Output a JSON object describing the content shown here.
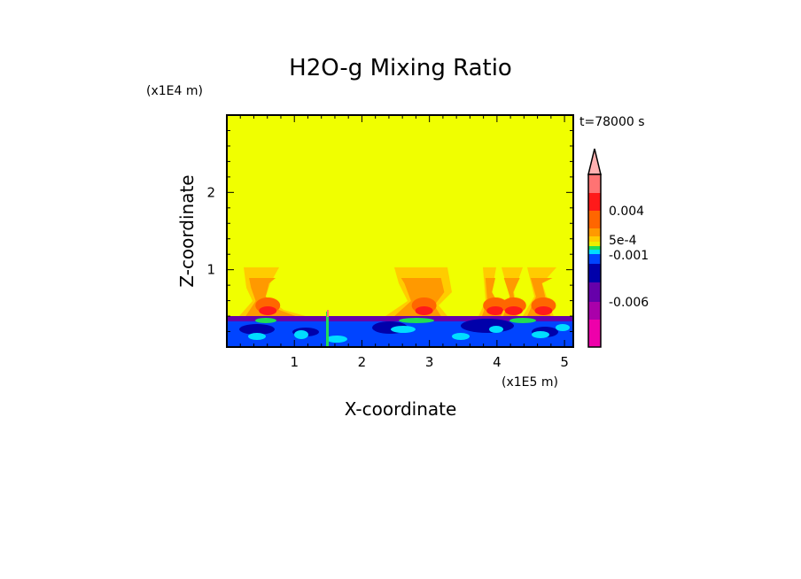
{
  "chart_data": {
    "type": "heatmap",
    "title": "H2O-g Mixing Ratio",
    "xlabel": "X-coordinate",
    "ylabel": "Z-coordinate",
    "x_unit": "(x1E5 m)",
    "y_unit": "(x1E4 m)",
    "annotation": "t=78000 s",
    "xlim": [
      0,
      5.13
    ],
    "ylim": [
      0,
      3.0
    ],
    "xticks": [
      1,
      2,
      3,
      4,
      5
    ],
    "xtick_labels": [
      "1",
      "2",
      "3",
      "4",
      "5"
    ],
    "yticks": [
      1,
      2
    ],
    "ytick_labels": [
      "1",
      "2"
    ],
    "colorbar": {
      "colors": [
        "#ffb0b0",
        "#ff7373",
        "#ff1a1a",
        "#ff6600",
        "#ff9900",
        "#ffcc00",
        "#eeee00",
        "#22dd55",
        "#00ddff",
        "#0044ff",
        "#0000aa",
        "#6600aa",
        "#aa00aa",
        "#ee00aa"
      ],
      "labels": [
        "0.004",
        "5e-4",
        "-0.001",
        "-0.006"
      ]
    },
    "background_color": "#f0ff00"
  }
}
